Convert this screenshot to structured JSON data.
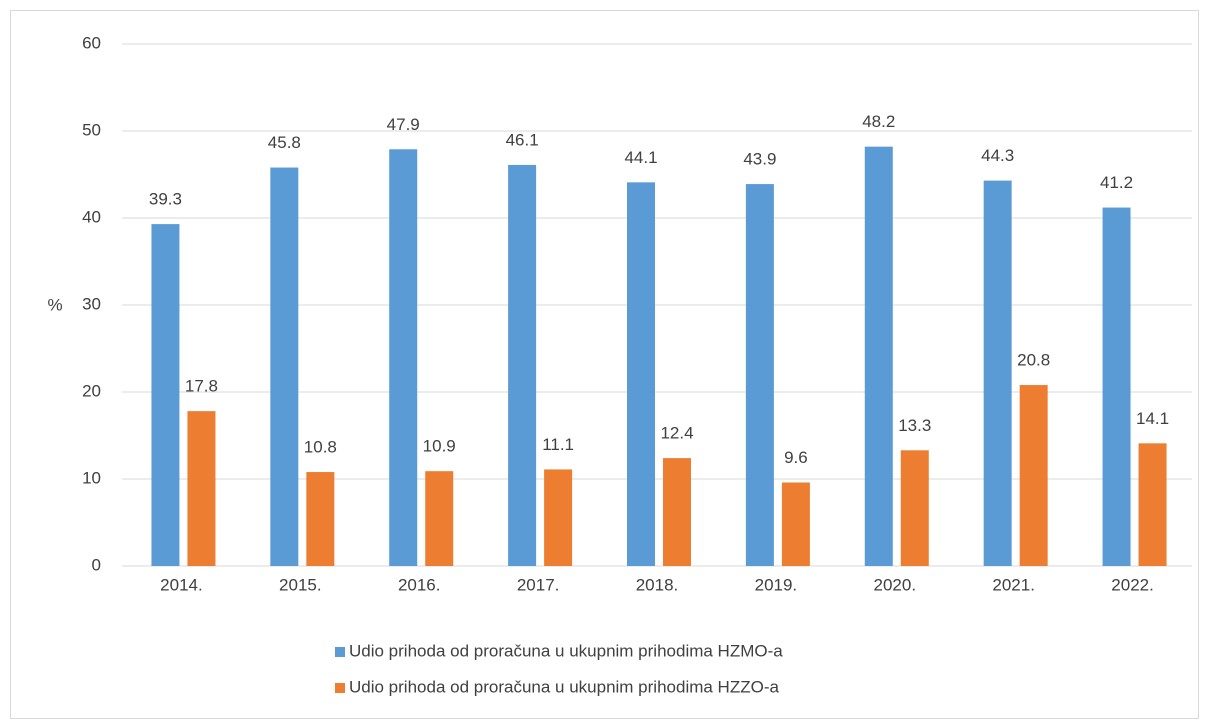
{
  "chart_data": {
    "type": "bar",
    "y_label": "%",
    "categories": [
      "2014.",
      "2015.",
      "2016.",
      "2017.",
      "2018.",
      "2019.",
      "2020.",
      "2021.",
      "2022."
    ],
    "series": [
      {
        "name": "Udio prihoda od proračuna u ukupnim prihodima HZMO-a",
        "color": "#5b9bd5",
        "values": [
          39.3,
          45.8,
          47.9,
          46.1,
          44.1,
          43.9,
          48.2,
          44.3,
          41.2
        ]
      },
      {
        "name": "Udio prihoda od proračuna u ukupnim prihodima HZZO-a",
        "color": "#ed7d31",
        "values": [
          17.8,
          10.8,
          10.9,
          11.1,
          12.4,
          9.6,
          13.3,
          20.8,
          14.1
        ]
      }
    ],
    "ylim": [
      0,
      60
    ],
    "yticks": [
      0,
      10,
      20,
      30,
      40,
      50,
      60
    ],
    "grid": true,
    "legend": "bottom"
  }
}
